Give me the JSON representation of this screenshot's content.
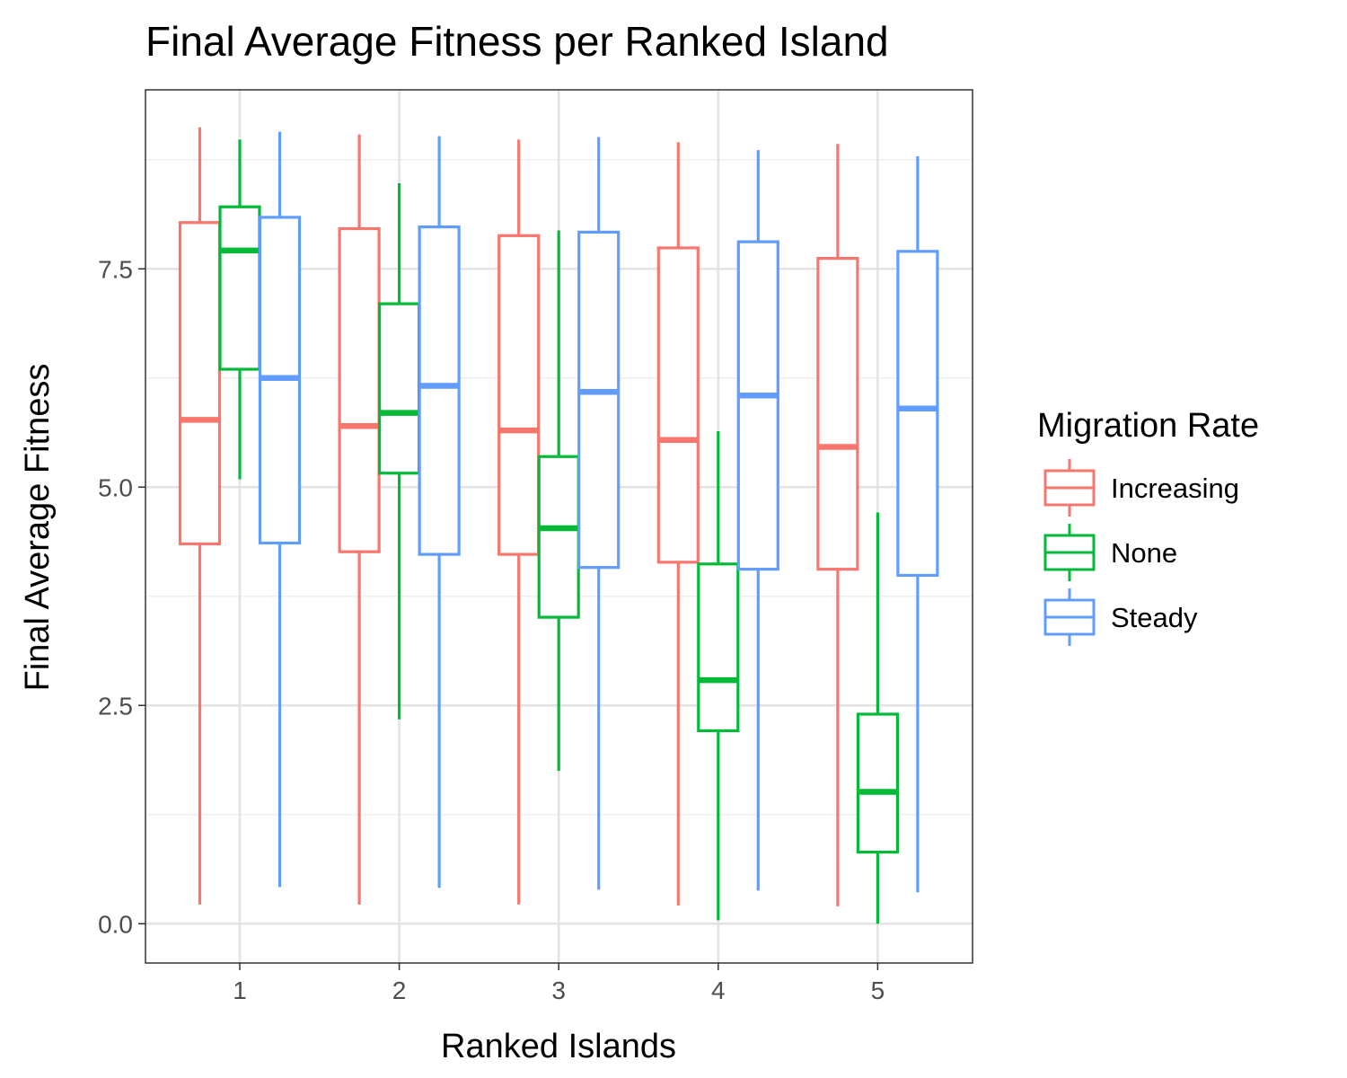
{
  "chart_data": {
    "type": "boxplot",
    "title": "Final Average Fitness per Ranked Island",
    "xlabel": "Ranked Islands",
    "ylabel": "Final Average Fitness",
    "categories": [
      "1",
      "2",
      "3",
      "4",
      "5"
    ],
    "y_ticks": [
      "0.0",
      "2.5",
      "5.0",
      "7.5"
    ],
    "ylim": [
      -0.45,
      9.55
    ],
    "grid": true,
    "legend": {
      "title": "Migration Rate",
      "position": "right"
    },
    "series": [
      {
        "name": "Increasing",
        "color": "#F8766D",
        "boxes": [
          {
            "min": 0.22,
            "q1": 4.35,
            "median": 5.77,
            "q3": 8.03,
            "max": 9.12
          },
          {
            "min": 0.22,
            "q1": 4.26,
            "median": 5.7,
            "q3": 7.96,
            "max": 9.04
          },
          {
            "min": 0.22,
            "q1": 4.23,
            "median": 5.65,
            "q3": 7.88,
            "max": 8.98
          },
          {
            "min": 0.21,
            "q1": 4.14,
            "median": 5.54,
            "q3": 7.74,
            "max": 8.95
          },
          {
            "min": 0.2,
            "q1": 4.06,
            "median": 5.46,
            "q3": 7.62,
            "max": 8.93
          }
        ]
      },
      {
        "name": "None",
        "color": "#00BA38",
        "boxes": [
          {
            "min": 5.09,
            "q1": 6.35,
            "median": 7.71,
            "q3": 8.21,
            "max": 8.98
          },
          {
            "min": 2.34,
            "q1": 5.16,
            "median": 5.85,
            "q3": 7.1,
            "max": 8.48
          },
          {
            "min": 1.75,
            "q1": 3.51,
            "median": 4.53,
            "q3": 5.35,
            "max": 7.94
          },
          {
            "min": 0.04,
            "q1": 2.21,
            "median": 2.79,
            "q3": 4.12,
            "max": 5.64
          },
          {
            "min": 0.0,
            "q1": 0.82,
            "median": 1.51,
            "q3": 2.4,
            "max": 4.71
          }
        ]
      },
      {
        "name": "Steady",
        "color": "#619CFF",
        "boxes": [
          {
            "min": 0.42,
            "q1": 4.36,
            "median": 6.25,
            "q3": 8.09,
            "max": 9.07
          },
          {
            "min": 0.41,
            "q1": 4.23,
            "median": 6.16,
            "q3": 7.98,
            "max": 9.02
          },
          {
            "min": 0.39,
            "q1": 4.08,
            "median": 6.09,
            "q3": 7.92,
            "max": 9.01
          },
          {
            "min": 0.38,
            "q1": 4.06,
            "median": 6.05,
            "q3": 7.81,
            "max": 8.86
          },
          {
            "min": 0.36,
            "q1": 3.99,
            "median": 5.9,
            "q3": 7.7,
            "max": 8.79
          }
        ]
      }
    ]
  }
}
